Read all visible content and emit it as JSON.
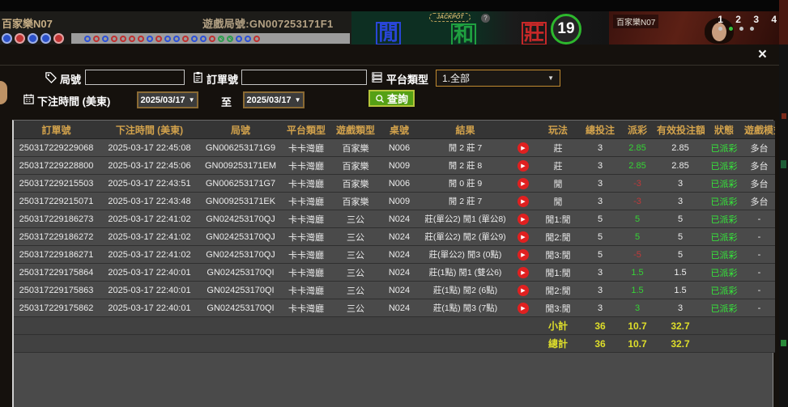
{
  "top_bar": {
    "game_title": "百家樂N07",
    "round_label": "遊戲局號:GN007253171F1",
    "chips": [
      "blue",
      "red",
      "blue",
      "blue",
      "red"
    ],
    "bead_road": [
      "blue",
      "red",
      "blue",
      "red",
      "red",
      "red",
      "red",
      "blue",
      "red",
      "blue",
      "blue",
      "red",
      "blue",
      "blue",
      "red",
      "green",
      "green",
      "blue",
      "blue",
      "red"
    ],
    "bet_areas": {
      "player": "閒",
      "tie": "和",
      "banker": "莊"
    },
    "jackpot_label": "JACKPOT",
    "jackpot_help": "?",
    "timer": "19",
    "video": {
      "title": "百家樂N07",
      "camera_numbers": "1 2 3 4",
      "camera_dots": [
        "off",
        "on",
        "off",
        "off"
      ]
    }
  },
  "modal": {
    "close_label": "×",
    "filters": {
      "round_label": "局號",
      "round_value": "",
      "order_label": "訂單號",
      "order_value": "",
      "platform_label": "平台類型",
      "platform_value": "1.全部",
      "platform_arrow": "▼",
      "bet_time_label": "下注時間 (美東)",
      "date_from": "2025/03/17",
      "date_to": "2025/03/17",
      "date_arrow": "▼",
      "to_label": "至",
      "search_label": "查詢"
    },
    "table": {
      "headers": [
        "訂單號",
        "下注時間 (美東)",
        "局號",
        "平台類型",
        "遊戲類型",
        "桌號",
        "結果",
        "",
        "玩法",
        "總投注",
        "派彩",
        "有效投注額",
        "狀態",
        "遊戲模式"
      ],
      "rows": [
        {
          "order_no": "250317229229068",
          "bet_time": "2025-03-17 22:45:08",
          "round_no": "GN006253171G9",
          "platform": "卡卡灣廳",
          "game_type": "百家樂",
          "table_no": "N006",
          "result": "閒 2 莊 7",
          "play_type": "莊",
          "total_bet": "3",
          "payout": "2.85",
          "valid_bet": "2.85",
          "status": "已派彩",
          "mode": "多台"
        },
        {
          "order_no": "250317229228800",
          "bet_time": "2025-03-17 22:45:06",
          "round_no": "GN009253171EM",
          "platform": "卡卡灣廳",
          "game_type": "百家樂",
          "table_no": "N009",
          "result": "閒 2 莊 8",
          "play_type": "莊",
          "total_bet": "3",
          "payout": "2.85",
          "valid_bet": "2.85",
          "status": "已派彩",
          "mode": "多台"
        },
        {
          "order_no": "250317229215503",
          "bet_time": "2025-03-17 22:43:51",
          "round_no": "GN006253171G7",
          "platform": "卡卡灣廳",
          "game_type": "百家樂",
          "table_no": "N006",
          "result": "閒 0 莊 9",
          "play_type": "閒",
          "total_bet": "3",
          "payout": "-3",
          "valid_bet": "3",
          "status": "已派彩",
          "mode": "多台"
        },
        {
          "order_no": "250317229215071",
          "bet_time": "2025-03-17 22:43:48",
          "round_no": "GN009253171EK",
          "platform": "卡卡灣廳",
          "game_type": "百家樂",
          "table_no": "N009",
          "result": "閒 2 莊 7",
          "play_type": "閒",
          "total_bet": "3",
          "payout": "-3",
          "valid_bet": "3",
          "status": "已派彩",
          "mode": "多台"
        },
        {
          "order_no": "250317229186273",
          "bet_time": "2025-03-17 22:41:02",
          "round_no": "GN024253170QJ",
          "platform": "卡卡灣廳",
          "game_type": "三公",
          "table_no": "N024",
          "result": "莊(單公2) 閒1 (單公8)",
          "play_type": "閒1:閒",
          "total_bet": "5",
          "payout": "5",
          "valid_bet": "5",
          "status": "已派彩",
          "mode": "-"
        },
        {
          "order_no": "250317229186272",
          "bet_time": "2025-03-17 22:41:02",
          "round_no": "GN024253170QJ",
          "platform": "卡卡灣廳",
          "game_type": "三公",
          "table_no": "N024",
          "result": "莊(單公2) 閒2 (單公9)",
          "play_type": "閒2:閒",
          "total_bet": "5",
          "payout": "5",
          "valid_bet": "5",
          "status": "已派彩",
          "mode": "-"
        },
        {
          "order_no": "250317229186271",
          "bet_time": "2025-03-17 22:41:02",
          "round_no": "GN024253170QJ",
          "platform": "卡卡灣廳",
          "game_type": "三公",
          "table_no": "N024",
          "result": "莊(單公2) 閒3 (0點)",
          "play_type": "閒3:閒",
          "total_bet": "5",
          "payout": "-5",
          "valid_bet": "5",
          "status": "已派彩",
          "mode": "-"
        },
        {
          "order_no": "250317229175864",
          "bet_time": "2025-03-17 22:40:01",
          "round_no": "GN024253170QI",
          "platform": "卡卡灣廳",
          "game_type": "三公",
          "table_no": "N024",
          "result": "莊(1點) 閒1 (雙公6)",
          "play_type": "閒1:閒",
          "total_bet": "3",
          "payout": "1.5",
          "valid_bet": "1.5",
          "status": "已派彩",
          "mode": "-"
        },
        {
          "order_no": "250317229175863",
          "bet_time": "2025-03-17 22:40:01",
          "round_no": "GN024253170QI",
          "platform": "卡卡灣廳",
          "game_type": "三公",
          "table_no": "N024",
          "result": "莊(1點) 閒2 (6點)",
          "play_type": "閒2:閒",
          "total_bet": "3",
          "payout": "1.5",
          "valid_bet": "1.5",
          "status": "已派彩",
          "mode": "-"
        },
        {
          "order_no": "250317229175862",
          "bet_time": "2025-03-17 22:40:01",
          "round_no": "GN024253170QI",
          "platform": "卡卡灣廳",
          "game_type": "三公",
          "table_no": "N024",
          "result": "莊(1點) 閒3 (7點)",
          "play_type": "閒3:閒",
          "total_bet": "3",
          "payout": "3",
          "valid_bet": "3",
          "status": "已派彩",
          "mode": "-"
        }
      ],
      "subtotal": {
        "label": "小計",
        "total_bet": "36",
        "payout": "10.7",
        "valid_bet": "32.7"
      },
      "grand_total": {
        "label": "總計",
        "total_bet": "36",
        "payout": "10.7",
        "valid_bet": "32.7"
      }
    }
  },
  "colors": {
    "accent_gold": "#d2a24c",
    "positive_green": "#35d435",
    "negative_red": "#bf3a3a",
    "status_green": "#35e93a",
    "total_yellow": "#dede2a",
    "search_green": "#55a015",
    "date_border": "#8a6a34"
  }
}
